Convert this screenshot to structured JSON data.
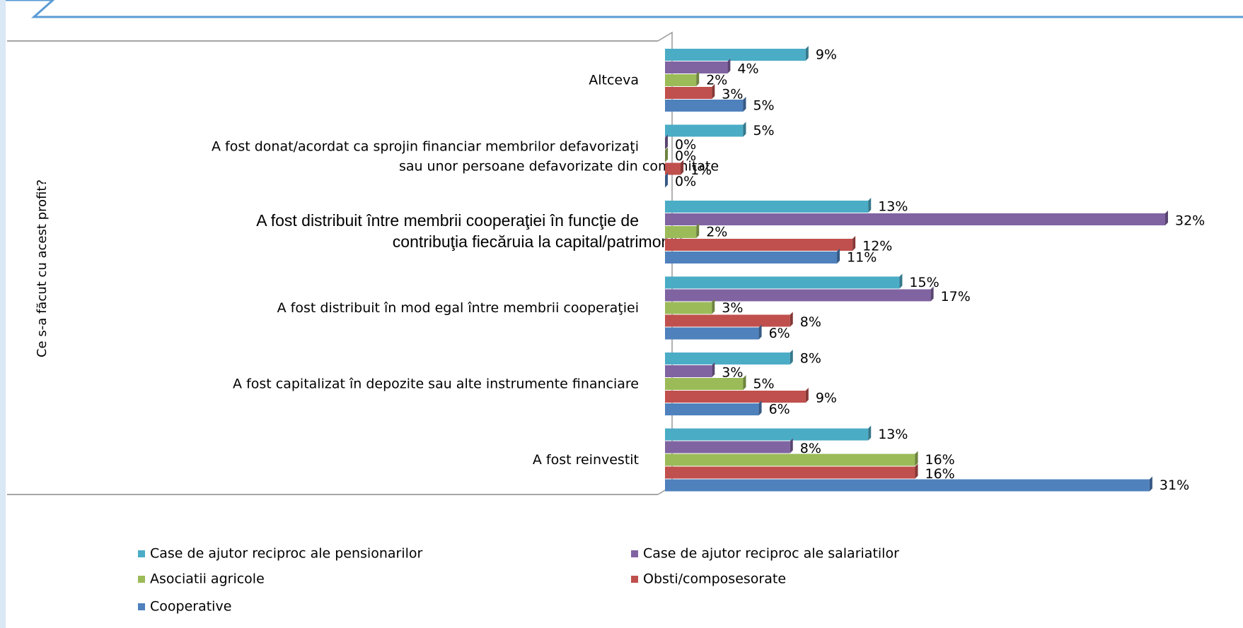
{
  "chart_data": {
    "type": "bar",
    "orientation": "horizontal",
    "y_label": "Ce s-a făcut cu acest profit?",
    "categories": [
      "Altceva",
      "A fost donat/acordat ca sprojin financiar membrilor defavorizaţi\nsau unor persoane defavorizate din comunitate",
      "A fost distribuit între membrii cooperaţiei în funcţie de\ncontribuţia fiecăruia la capital/patrimoniu",
      "A fost distribuit în mod egal între membrii cooperaţiei",
      "A fost capitalizat în depozite sau alte instrumente financiare",
      "A fost reinvestit"
    ],
    "series": [
      {
        "name": "Case de ajutor reciproc ale pensionarilor",
        "color": "#4bacc6",
        "values": [
          9,
          5,
          13,
          15,
          8,
          13
        ],
        "value_labels": [
          "9%",
          "5%",
          "13%",
          "15%",
          "8%",
          "13%"
        ]
      },
      {
        "name": "Case de ajutor reciproc ale salariatilor",
        "color": "#8064a2",
        "values": [
          4,
          0,
          32,
          17,
          3,
          8
        ],
        "value_labels": [
          "4%",
          "0%",
          "32%",
          "17%",
          "3%",
          "8%"
        ]
      },
      {
        "name": "Asociatii agricole",
        "color": "#9bbb59",
        "values": [
          2,
          0,
          2,
          3,
          5,
          16
        ],
        "value_labels": [
          "2%",
          "0%",
          "2%",
          "3%",
          "5%",
          "16%"
        ]
      },
      {
        "name": "Obsti/composesorate",
        "color": "#c0504d",
        "values": [
          3,
          1,
          12,
          8,
          9,
          16
        ],
        "value_labels": [
          "3%",
          "1%",
          "12%",
          "8%",
          "9%",
          "16%"
        ]
      },
      {
        "name": "Cooperative",
        "color": "#4f81bd",
        "values": [
          5,
          0,
          11,
          6,
          6,
          31
        ],
        "value_labels": [
          "5%",
          "0%",
          "11%",
          "6%",
          "6%",
          "31%"
        ]
      }
    ]
  }
}
